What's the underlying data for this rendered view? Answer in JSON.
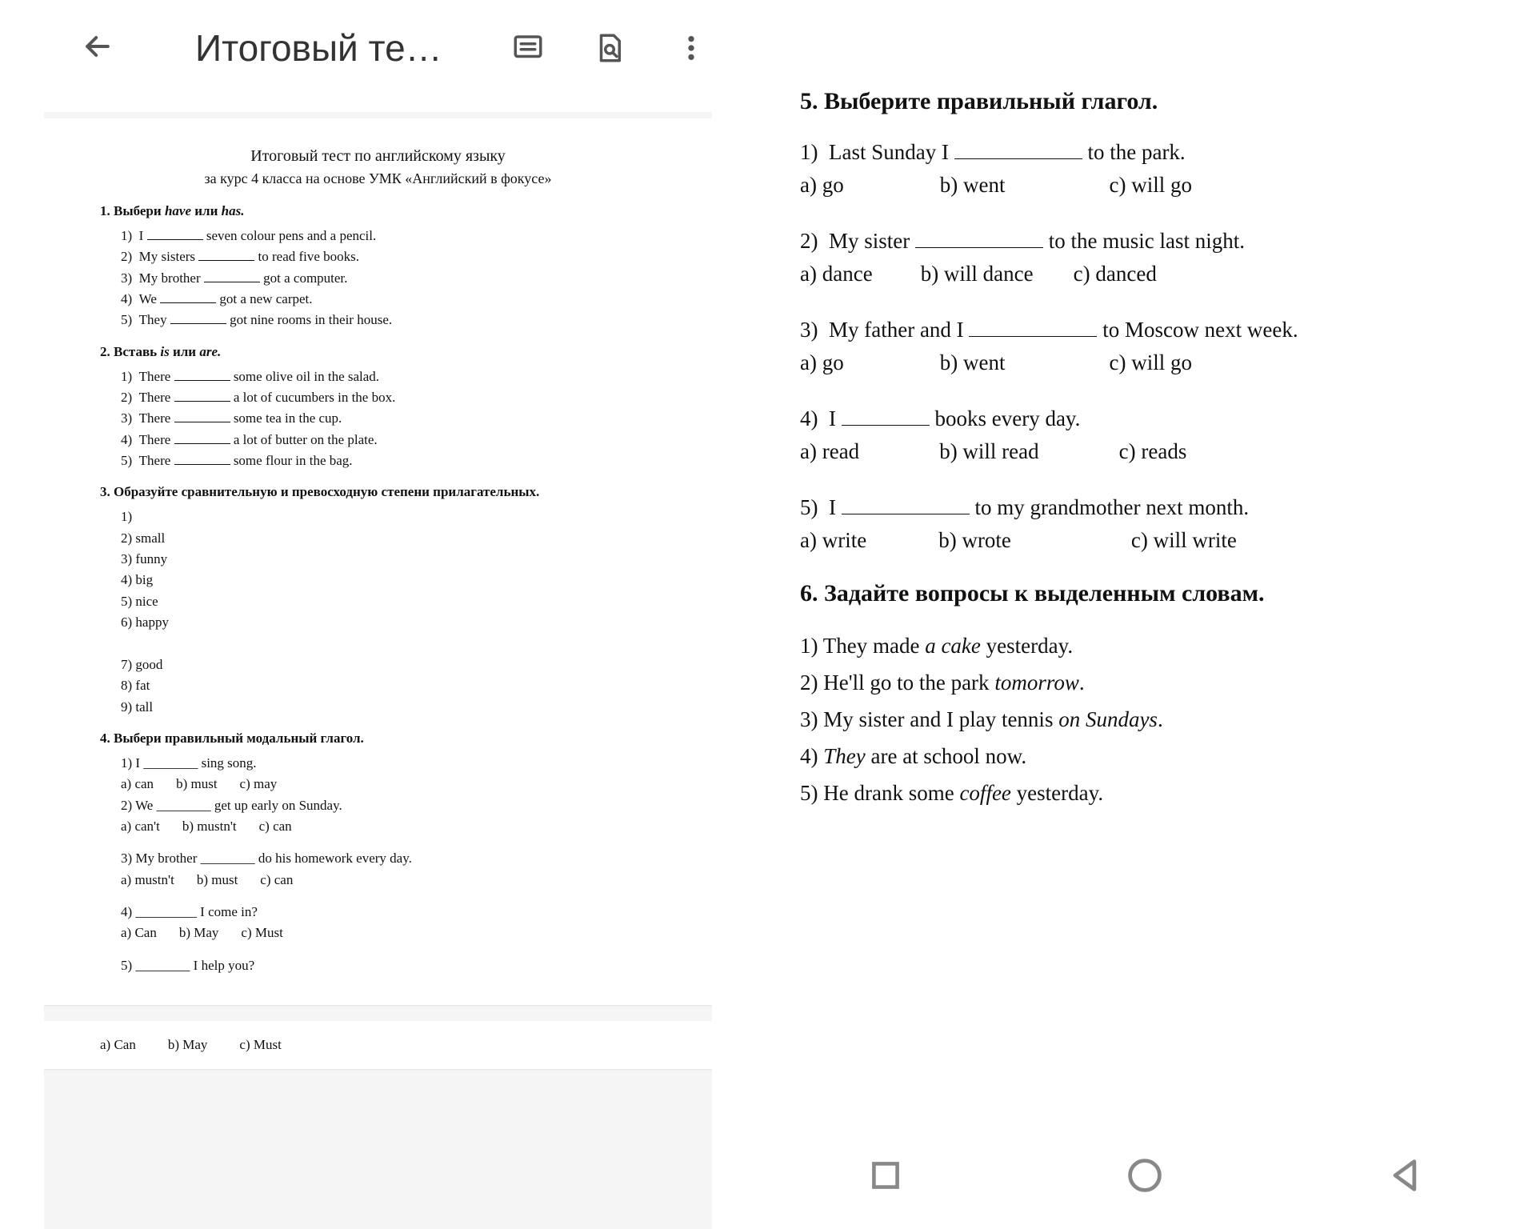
{
  "colors": {
    "text": "#111111",
    "bg": "#ffffff",
    "docbg": "#f5f5f5",
    "iconStroke": "#555555"
  },
  "toolbar": {
    "title": "Итоговый те…"
  },
  "doc": {
    "title": "Итоговый тест по английскому языку",
    "subtitle": "за курс 4 класса на основе УМК «Английский в фокусе»",
    "q1": {
      "heading_prefix": "1. Выбери ",
      "heading_word1": "have",
      "heading_mid": " или  ",
      "heading_word2": "has.",
      "items": [
        {
          "n": "1)",
          "before": "I ",
          "after": " seven colour pens and a pencil."
        },
        {
          "n": "2)",
          "before": "My sisters ",
          "after": " to read  five books."
        },
        {
          "n": "3)",
          "before": "My brother ",
          "after": " got a computer."
        },
        {
          "n": "4)",
          "before": "We ",
          "after": " got a new carpet."
        },
        {
          "n": "5)",
          "before": "They ",
          "after": " got nine rooms in their house."
        }
      ]
    },
    "q2": {
      "heading_prefix": "2. Вставь ",
      "heading_word1": "is",
      "heading_mid": " или  ",
      "heading_word2": "are.",
      "items": [
        {
          "n": "1)",
          "before": "There ",
          "after": " some olive oil in the salad."
        },
        {
          "n": "2)",
          "before": "There ",
          "after": " a lot of cucumbers in the box."
        },
        {
          "n": "3)",
          "before": "There ",
          "after": " some tea in the cup."
        },
        {
          "n": "4)",
          "before": "There ",
          "after": " a lot of butter on the plate."
        },
        {
          "n": "5)",
          "before": "There ",
          "after": " some flour in the bag."
        }
      ]
    },
    "q3": {
      "heading": "3. Образуйте сравнительную и превосходную степени прилагательных.",
      "items": [
        "1)",
        "2)  small",
        "3)  funny",
        "4)  big",
        "5)  nice",
        "6)  happy",
        "",
        "7)  good",
        "8)  fat",
        "9)  tall"
      ]
    },
    "q4": {
      "heading": "4. Выбери правильный модальный глагол.",
      "blocks": [
        {
          "line": "1) I ________ sing song.",
          "opts": [
            "a) can",
            "b) must",
            "c) may"
          ]
        },
        {
          "line": "2) We ________ get up early on Sunday.",
          "opts": [
            "a) can't",
            "b) mustn't",
            "c) can"
          ]
        },
        {
          "line": "3) My brother ________ do his homework every day.",
          "opts": [
            "a) mustn't",
            "b) must",
            "c) can"
          ]
        },
        {
          "line": "4) _________ I come in?",
          "opts": [
            "a) Can",
            "b) May",
            "c) Must"
          ]
        },
        {
          "line": "5) ________ I help you?"
        }
      ],
      "page2_opts": [
        "a) Can",
        "b) May",
        "c) Must"
      ]
    }
  },
  "right": {
    "q5": {
      "heading": "5. Выберите правильный глагол.",
      "items": [
        {
          "n": "1)",
          "before": "Last Sunday I ",
          "after": " to the park.",
          "opts": [
            "a) go",
            "b) went",
            "c) will go"
          ],
          "gaps": [
            "0px",
            "120px",
            "130px"
          ]
        },
        {
          "n": "2)",
          "before": "My sister ",
          "after": " to the music last night.",
          "opts": [
            "a) dance",
            "b) will dance",
            "c) danced"
          ],
          "gaps": [
            "0px",
            "60px",
            "50px"
          ]
        },
        {
          "n": "3)",
          "before": "My father and I ",
          "after": " to Moscow next week.",
          "opts": [
            "a) go",
            "b) went",
            "c) will go"
          ],
          "gaps": [
            "0px",
            "120px",
            "130px"
          ]
        },
        {
          "n": "4)",
          "before": "I ",
          "blankw": "110px",
          "after": " books every day.",
          "opts": [
            "a) read",
            "b) will read",
            "c) reads"
          ],
          "gaps": [
            "0px",
            "100px",
            "100px"
          ]
        },
        {
          "n": "5)",
          "before": "I ",
          "after": " to my grandmother next month.",
          "opts": [
            "a) write",
            "b) wrote",
            "c) will write"
          ],
          "gaps": [
            "0px",
            "90px",
            "150px"
          ]
        }
      ]
    },
    "q6": {
      "heading": "6. Задайте вопросы к выделенным словам.",
      "items": [
        {
          "pre": "1)  They made ",
          "ital": "a cake",
          "post": " yesterday."
        },
        {
          "pre": "2)  He'll go to the park ",
          "ital": "tomorrow",
          "post": "."
        },
        {
          "pre": "3)  My sister and I play tennis ",
          "ital": "on Sundays",
          "post": "."
        },
        {
          "pre": "4)  ",
          "ital": "They",
          "post": " are at school now."
        },
        {
          "pre": "5)  He drank some ",
          "ital": "coffee",
          "post": " yesterday."
        }
      ]
    }
  }
}
